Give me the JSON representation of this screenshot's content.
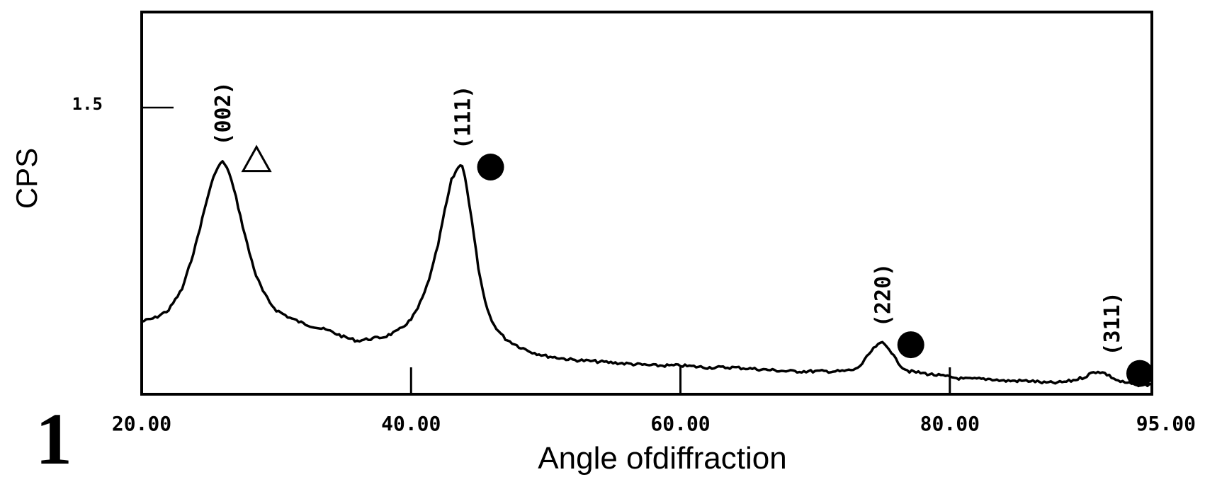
{
  "figure": {
    "number": "1"
  },
  "chart_data": {
    "type": "line",
    "xlabel": "Angle ofdiffraction",
    "ylabel": "CPS",
    "xlim": [
      20,
      95
    ],
    "ylim": [
      0,
      2.0
    ],
    "x_ticks": [
      {
        "value": 20,
        "label": "20.00"
      },
      {
        "value": 40,
        "label": "40.00"
      },
      {
        "value": 60,
        "label": "60.00"
      },
      {
        "value": 80,
        "label": "80.00"
      },
      {
        "value": 95,
        "label": "95.00"
      }
    ],
    "y_ticks": [
      {
        "value": 1.5,
        "label": "1.5"
      }
    ],
    "grid": false,
    "legend": "none",
    "series": [
      {
        "x": [
          20,
          21,
          22,
          23,
          23.5,
          24,
          24.5,
          25,
          25.5,
          26,
          26.5,
          27,
          27.5,
          28,
          28.5,
          29,
          29.5,
          30,
          31,
          32,
          33,
          34,
          35,
          36,
          37,
          38,
          39,
          40,
          40.5,
          41,
          41.5,
          42,
          42.5,
          43,
          43.5,
          43.8,
          44,
          44.3,
          44.7,
          45,
          45.5,
          46,
          46.5,
          47,
          47.5,
          48,
          49,
          50,
          51,
          52,
          54,
          56,
          58,
          60,
          62,
          64,
          66,
          68,
          70,
          72,
          73,
          73.5,
          74,
          74.5,
          75,
          75.5,
          76,
          76.5,
          77,
          78,
          79,
          80,
          81,
          82,
          83,
          84,
          85,
          86,
          87,
          88,
          89,
          90,
          90.5,
          91,
          91.5,
          92,
          92.5,
          93,
          94,
          95
        ],
        "y": [
          0.38,
          0.4,
          0.44,
          0.55,
          0.66,
          0.78,
          0.92,
          1.06,
          1.17,
          1.22,
          1.16,
          1.03,
          0.88,
          0.74,
          0.62,
          0.54,
          0.48,
          0.44,
          0.4,
          0.37,
          0.35,
          0.33,
          0.3,
          0.28,
          0.29,
          0.3,
          0.33,
          0.39,
          0.45,
          0.53,
          0.64,
          0.78,
          0.96,
          1.12,
          1.19,
          1.2,
          1.14,
          1.0,
          0.82,
          0.65,
          0.48,
          0.38,
          0.33,
          0.29,
          0.27,
          0.25,
          0.22,
          0.2,
          0.19,
          0.18,
          0.17,
          0.16,
          0.15,
          0.15,
          0.14,
          0.14,
          0.13,
          0.12,
          0.12,
          0.12,
          0.13,
          0.16,
          0.21,
          0.25,
          0.27,
          0.24,
          0.18,
          0.14,
          0.12,
          0.11,
          0.1,
          0.09,
          0.08,
          0.08,
          0.08,
          0.07,
          0.07,
          0.07,
          0.06,
          0.06,
          0.07,
          0.09,
          0.11,
          0.12,
          0.11,
          0.09,
          0.07,
          0.06,
          0.05,
          0.05
        ]
      }
    ],
    "annotations": [
      {
        "label": "(002)",
        "x": 26.0,
        "y": 1.22,
        "marker": "triangle"
      },
      {
        "label": "(111)",
        "x": 43.8,
        "y": 1.2,
        "marker": "circle"
      },
      {
        "label": "(220)",
        "x": 75.0,
        "y": 0.27,
        "marker": "circle"
      },
      {
        "label": "(311)",
        "x": 92.0,
        "y": 0.12,
        "marker": "circle"
      }
    ],
    "colors": {
      "line": "#000000",
      "frame": "#000000"
    }
  }
}
